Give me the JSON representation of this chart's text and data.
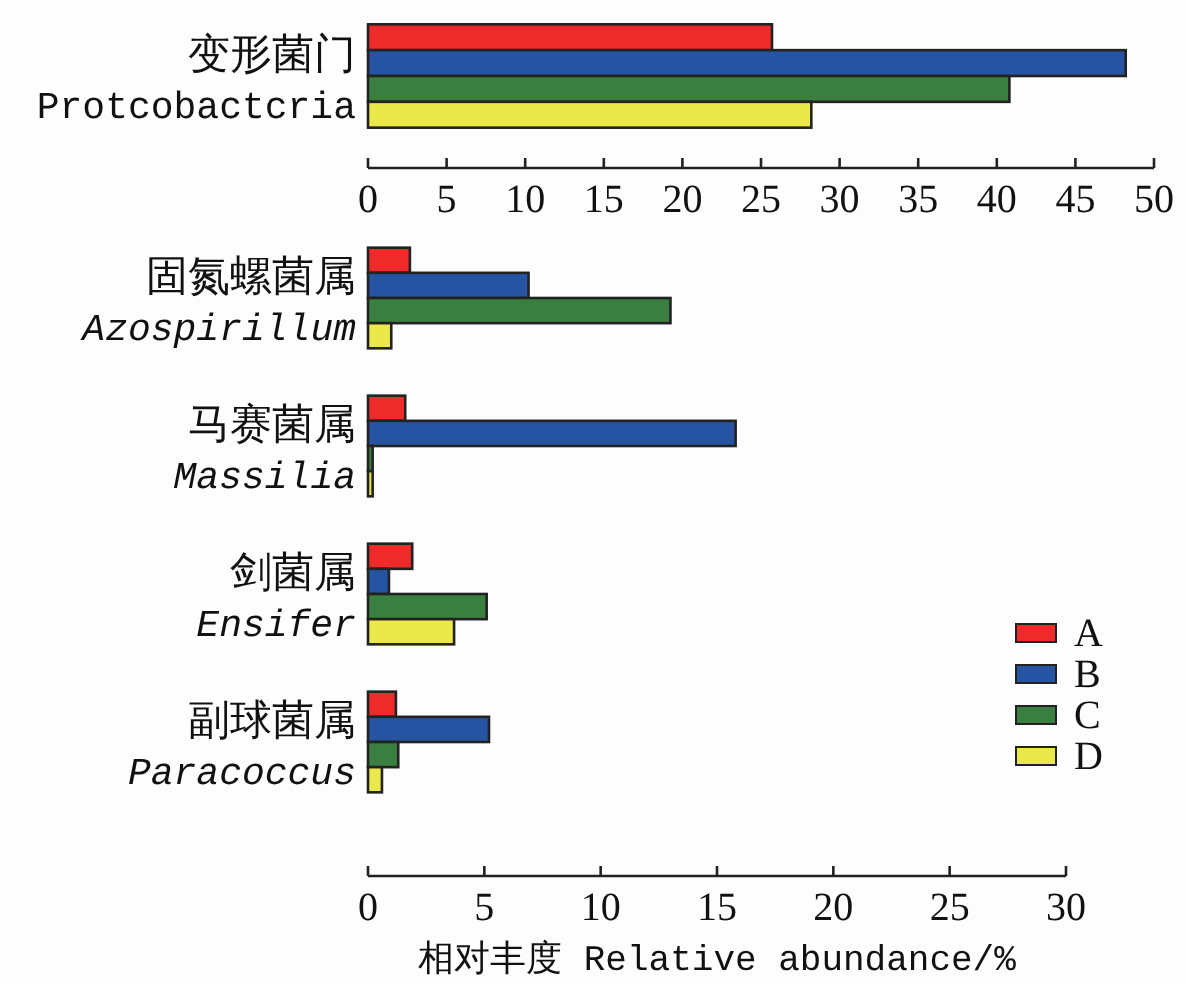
{
  "chart_data": [
    {
      "type": "bar",
      "orientation": "horizontal",
      "categories": [
        "变形菌门 Protcobactcria"
      ],
      "xlim": [
        0,
        50
      ],
      "xticks": [
        0,
        5,
        10,
        15,
        20,
        25,
        30,
        35,
        40,
        45,
        50
      ],
      "series": [
        {
          "color": "#ee2a2a",
          "values": [
            25.7
          ]
        },
        {
          "color": "#2654a3",
          "values": [
            48.2
          ]
        },
        {
          "color": "#3a7f40",
          "values": [
            40.8
          ]
        },
        {
          "color": "#eae84a",
          "values": [
            28.2
          ]
        }
      ]
    },
    {
      "type": "bar",
      "orientation": "horizontal",
      "categories": [
        "固氮螺菌属 *Azospirillum*",
        "马赛菌属 *Massilia*",
        "剑菌属 *Ensifer*",
        "副球菌属 *Paracoccus*"
      ],
      "xlim": [
        0,
        30
      ],
      "xticks": [
        0,
        5,
        10,
        15,
        20,
        25,
        30
      ],
      "xlabel": "相对丰度 Relative abundance/%",
      "legend": "right",
      "series": [
        {
          "name": "A",
          "color": "#ee2a2a",
          "values": [
            1.8,
            1.6,
            1.9,
            1.2
          ]
        },
        {
          "name": "B",
          "color": "#2654a3",
          "values": [
            6.9,
            15.8,
            0.9,
            5.2
          ]
        },
        {
          "name": "C",
          "color": "#3a7f40",
          "values": [
            13,
            0.2,
            5.1,
            1.3
          ]
        },
        {
          "name": "D",
          "color": "#eae84a",
          "values": [
            1,
            0.2,
            3.7,
            0.6
          ]
        }
      ]
    }
  ]
}
